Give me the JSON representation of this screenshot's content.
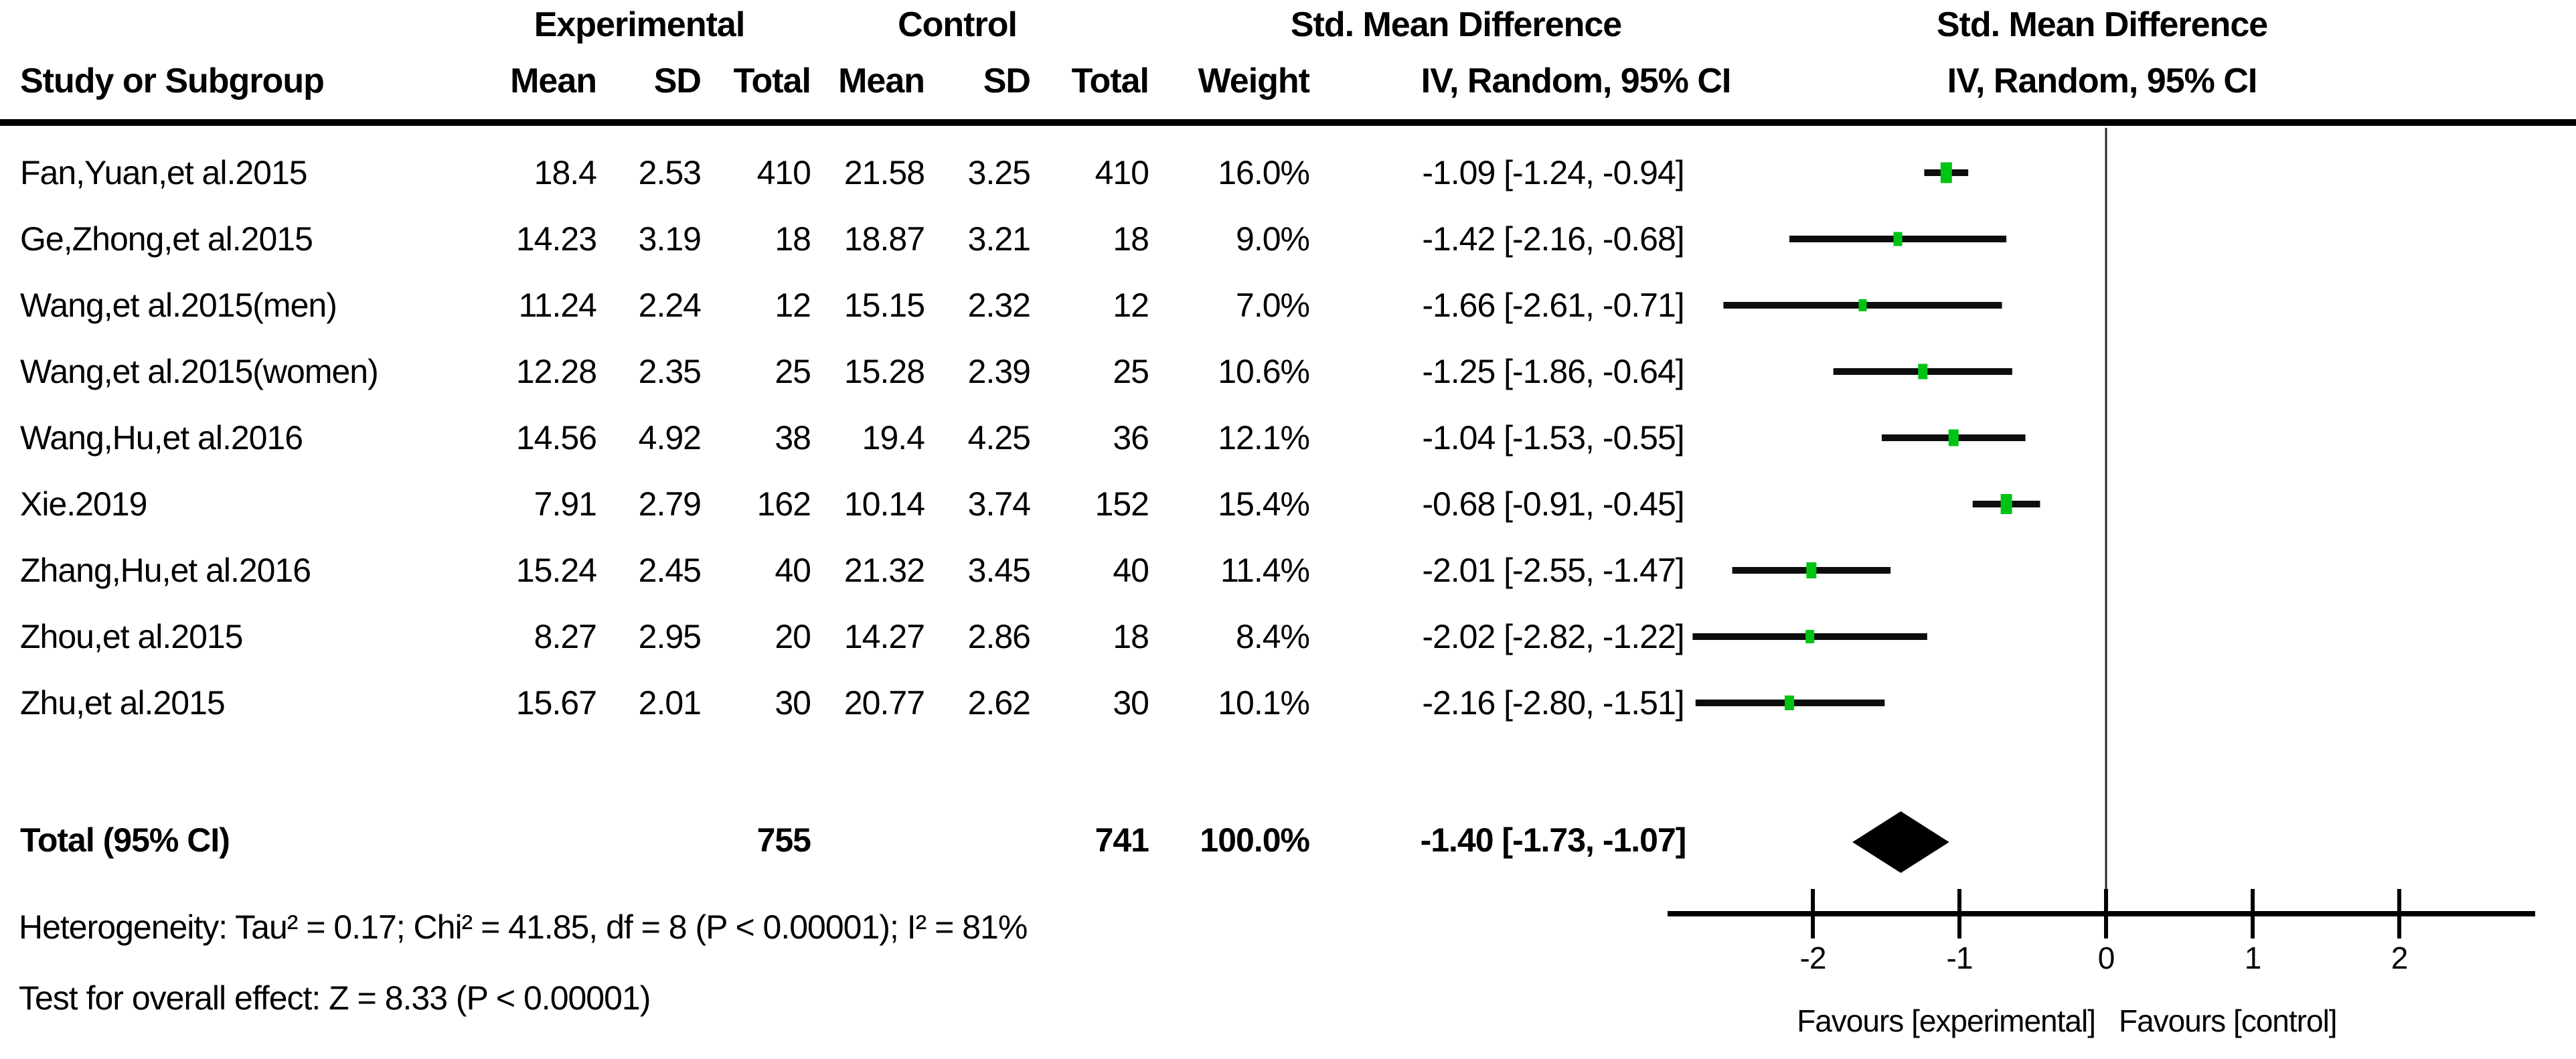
{
  "title_row": {
    "experimental": "Experimental",
    "control": "Control",
    "smd_left": "Std. Mean Difference",
    "smd_right": "Std. Mean Difference"
  },
  "header": {
    "study": "Study or Subgroup",
    "exp_mean": "Mean",
    "exp_sd": "SD",
    "exp_total": "Total",
    "ctl_mean": "Mean",
    "ctl_sd": "SD",
    "ctl_total": "Total",
    "weight": "Weight",
    "iv_left": "IV, Random, 95% CI",
    "iv_right": "IV, Random, 95% CI"
  },
  "studies": [
    {
      "name": "Fan,Yuan,et al.2015",
      "exp_mean": "18.4",
      "exp_sd": "2.53",
      "exp_total": "410",
      "ctl_mean": "21.58",
      "ctl_sd": "3.25",
      "ctl_total": "410",
      "weight": "16.0%",
      "ci_text": "-1.09 [-1.24, -0.94]",
      "est": -1.09,
      "lo": -1.24,
      "hi": -0.94,
      "weight_num": 16.0
    },
    {
      "name": "Ge,Zhong,et al.2015",
      "exp_mean": "14.23",
      "exp_sd": "3.19",
      "exp_total": "18",
      "ctl_mean": "18.87",
      "ctl_sd": "3.21",
      "ctl_total": "18",
      "weight": "9.0%",
      "ci_text": "-1.42 [-2.16, -0.68]",
      "est": -1.42,
      "lo": -2.16,
      "hi": -0.68,
      "weight_num": 9.0
    },
    {
      "name": "Wang,et al.2015(men)",
      "exp_mean": "11.24",
      "exp_sd": "2.24",
      "exp_total": "12",
      "ctl_mean": "15.15",
      "ctl_sd": "2.32",
      "ctl_total": "12",
      "weight": "7.0%",
      "ci_text": "-1.66 [-2.61, -0.71]",
      "est": -1.66,
      "lo": -2.61,
      "hi": -0.71,
      "weight_num": 7.0
    },
    {
      "name": "Wang,et al.2015(women)",
      "exp_mean": "12.28",
      "exp_sd": "2.35",
      "exp_total": "25",
      "ctl_mean": "15.28",
      "ctl_sd": "2.39",
      "ctl_total": "25",
      "weight": "10.6%",
      "ci_text": "-1.25 [-1.86, -0.64]",
      "est": -1.25,
      "lo": -1.86,
      "hi": -0.64,
      "weight_num": 10.6
    },
    {
      "name": "Wang,Hu,et al.2016",
      "exp_mean": "14.56",
      "exp_sd": "4.92",
      "exp_total": "38",
      "ctl_mean": "19.4",
      "ctl_sd": "4.25",
      "ctl_total": "36",
      "weight": "12.1%",
      "ci_text": "-1.04 [-1.53, -0.55]",
      "est": -1.04,
      "lo": -1.53,
      "hi": -0.55,
      "weight_num": 12.1
    },
    {
      "name": "Xie.2019",
      "exp_mean": "7.91",
      "exp_sd": "2.79",
      "exp_total": "162",
      "ctl_mean": "10.14",
      "ctl_sd": "3.74",
      "ctl_total": "152",
      "weight": "15.4%",
      "ci_text": "-0.68 [-0.91, -0.45]",
      "est": -0.68,
      "lo": -0.91,
      "hi": -0.45,
      "weight_num": 15.4
    },
    {
      "name": "Zhang,Hu,et al.2016",
      "exp_mean": "15.24",
      "exp_sd": "2.45",
      "exp_total": "40",
      "ctl_mean": "21.32",
      "ctl_sd": "3.45",
      "ctl_total": "40",
      "weight": "11.4%",
      "ci_text": "-2.01 [-2.55, -1.47]",
      "est": -2.01,
      "lo": -2.55,
      "hi": -1.47,
      "weight_num": 11.4
    },
    {
      "name": "Zhou,et al.2015",
      "exp_mean": "8.27",
      "exp_sd": "2.95",
      "exp_total": "20",
      "ctl_mean": "14.27",
      "ctl_sd": "2.86",
      "ctl_total": "18",
      "weight": "8.4%",
      "ci_text": "-2.02 [-2.82, -1.22]",
      "est": -2.02,
      "lo": -2.82,
      "hi": -1.22,
      "weight_num": 8.4
    },
    {
      "name": "Zhu,et al.2015",
      "exp_mean": "15.67",
      "exp_sd": "2.01",
      "exp_total": "30",
      "ctl_mean": "20.77",
      "ctl_sd": "2.62",
      "ctl_total": "30",
      "weight": "10.1%",
      "ci_text": "-2.16 [-2.80, -1.51]",
      "est": -2.16,
      "lo": -2.8,
      "hi": -1.51,
      "weight_num": 10.1
    }
  ],
  "total": {
    "label": "Total (95% CI)",
    "exp_total": "755",
    "ctl_total": "741",
    "weight": "100.0%",
    "ci_text": "-1.40 [-1.73, -1.07]",
    "est": -1.4,
    "lo": -1.73,
    "hi": -1.07
  },
  "footnotes": {
    "heterogeneity": "Heterogeneity: Tau² = 0.17; Chi² = 41.85, df = 8 (P < 0.00001); I² = 81%",
    "overall": "Test for overall effect: Z = 8.33 (P < 0.00001)"
  },
  "axis": {
    "ticks": [
      "-2",
      "-1",
      "0",
      "1",
      "2"
    ],
    "tick_values": [
      -2,
      -1,
      0,
      1,
      2
    ],
    "favours_left": "Favours [experimental]",
    "favours_right": "Favours [control]"
  },
  "colors": {
    "marker_green": "#00c413",
    "line_black": "#0d0d0d"
  },
  "chart_data": {
    "type": "forest",
    "title": "Std. Mean Difference, IV, Random, 95% CI",
    "effect_measure": "Std. Mean Difference",
    "model": "IV, Random, 95% CI",
    "studies": [
      "Fan,Yuan,et al.2015",
      "Ge,Zhong,et al.2015",
      "Wang,et al.2015(men)",
      "Wang,et al.2015(women)",
      "Wang,Hu,et al.2016",
      "Xie.2019",
      "Zhang,Hu,et al.2016",
      "Zhou,et al.2015",
      "Zhu,et al.2015"
    ],
    "estimates": [
      -1.09,
      -1.42,
      -1.66,
      -1.25,
      -1.04,
      -0.68,
      -2.01,
      -2.02,
      -2.16
    ],
    "ci_low": [
      -1.24,
      -2.16,
      -2.61,
      -1.86,
      -1.53,
      -0.91,
      -2.55,
      -2.82,
      -2.8
    ],
    "ci_high": [
      -0.94,
      -0.68,
      -0.71,
      -0.64,
      -0.55,
      -0.45,
      -1.47,
      -1.22,
      -1.51
    ],
    "weights_pct": [
      16.0,
      9.0,
      7.0,
      10.6,
      12.1,
      15.4,
      11.4,
      8.4,
      10.1
    ],
    "experimental": {
      "mean": [
        18.4,
        14.23,
        11.24,
        12.28,
        14.56,
        7.91,
        15.24,
        8.27,
        15.67
      ],
      "sd": [
        2.53,
        3.19,
        2.24,
        2.35,
        4.92,
        2.79,
        2.45,
        2.95,
        2.01
      ],
      "n": [
        410,
        18,
        12,
        25,
        38,
        162,
        40,
        20,
        30
      ],
      "n_total": 755
    },
    "control": {
      "mean": [
        21.58,
        18.87,
        15.15,
        15.28,
        19.4,
        10.14,
        21.32,
        14.27,
        20.77
      ],
      "sd": [
        3.25,
        3.21,
        2.32,
        2.39,
        4.25,
        3.74,
        3.45,
        2.86,
        2.62
      ],
      "n": [
        410,
        18,
        12,
        25,
        36,
        152,
        40,
        18,
        30
      ],
      "n_total": 741
    },
    "total_effect": {
      "estimate": -1.4,
      "ci_low": -1.73,
      "ci_high": -1.07,
      "weight_pct": 100.0
    },
    "heterogeneity": {
      "tau2": 0.17,
      "chi2": 41.85,
      "df": 8,
      "p": "< 0.00001",
      "i2_pct": 81
    },
    "overall_effect": {
      "z": 8.33,
      "p": "< 0.00001"
    },
    "xlim": [
      -2.99,
      2.93
    ],
    "x_ticks": [
      -2,
      -1,
      0,
      1,
      2
    ],
    "xlabel_left": "Favours [experimental]",
    "xlabel_right": "Favours [control]"
  }
}
